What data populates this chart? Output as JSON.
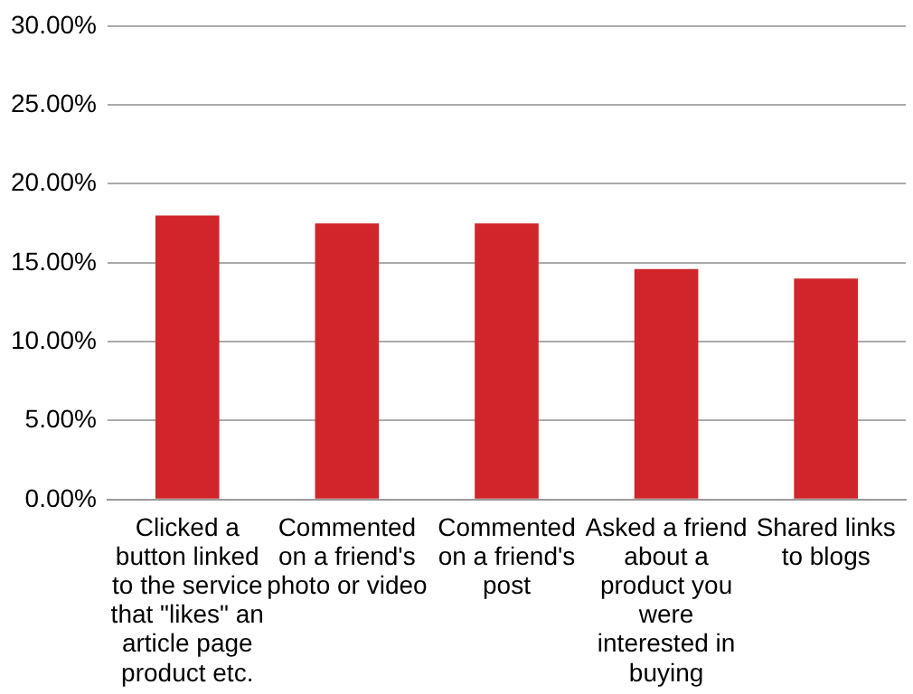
{
  "chart_data": {
    "type": "bar",
    "categories": [
      "Clicked a button linked to the service that \"likes\" an article page product etc.",
      "Commented on a friend's photo or video",
      "Commented on a friend's post",
      "Asked a friend about a product you were interested in buying",
      "Shared links to blogs"
    ],
    "values": [
      18.0,
      17.5,
      17.5,
      14.6,
      14.0
    ],
    "color": "#d0252b",
    "ylim": [
      0,
      30
    ],
    "yticks": [
      {
        "value": 0,
        "label": "0.00%"
      },
      {
        "value": 5,
        "label": "5.00%"
      },
      {
        "value": 10,
        "label": "10.00%"
      },
      {
        "value": 15,
        "label": "15.00%"
      },
      {
        "value": 20,
        "label": "20.00%"
      },
      {
        "value": 25,
        "label": "25.00%"
      },
      {
        "value": 30,
        "label": "30.00%"
      }
    ],
    "grid": "y"
  }
}
